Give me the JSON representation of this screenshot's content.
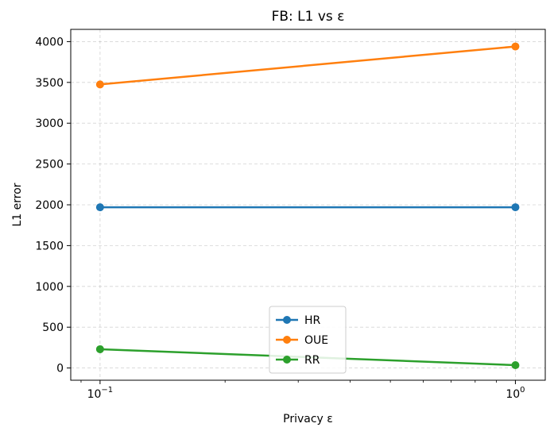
{
  "chart_data": {
    "type": "line",
    "title": "FB: L1 vs ε",
    "xlabel": "Privacy ε",
    "ylabel": "L1 error",
    "xscale": "log",
    "xlim": [
      0.085,
      1.18
    ],
    "ylim": [
      -150,
      4150
    ],
    "x": [
      0.1,
      1.0
    ],
    "xticks": [
      {
        "value": 0.1,
        "base": "10",
        "exp": "−1"
      },
      {
        "value": 1.0,
        "base": "10",
        "exp": "0"
      }
    ],
    "yticks": [
      "0",
      "500",
      "1000",
      "1500",
      "2000",
      "2500",
      "3000",
      "3500",
      "4000"
    ],
    "grid": true,
    "legend_position": "bottom-center",
    "series": [
      {
        "name": "HR",
        "color": "#1f77b4",
        "values": [
          1970,
          1970
        ]
      },
      {
        "name": "OUE",
        "color": "#ff7f0e",
        "values": [
          3475,
          3940
        ]
      },
      {
        "name": "RR",
        "color": "#2ca02c",
        "values": [
          230,
          35
        ]
      }
    ]
  }
}
